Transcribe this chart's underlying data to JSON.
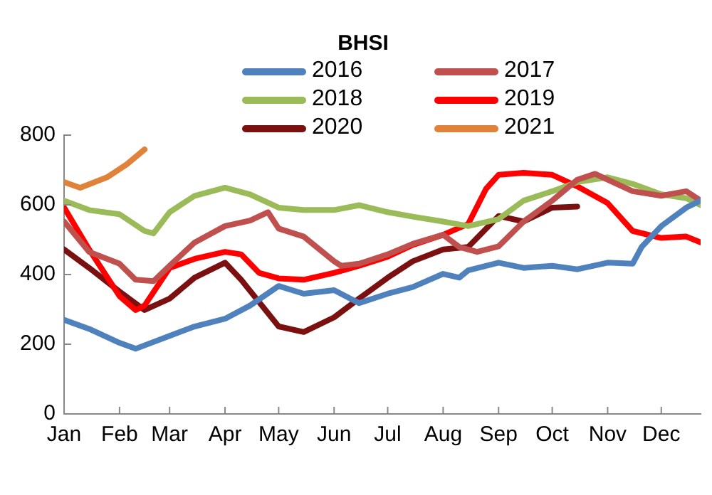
{
  "chart_data": {
    "type": "line",
    "title": "BHSI",
    "legend": "top",
    "grid": false,
    "marker": "none",
    "line_style": "solid",
    "xlim": [
      "--01-01",
      "--12-23"
    ],
    "xticks": [
      {
        "value": "--01-01",
        "label": "Jan"
      },
      {
        "value": "--02-01",
        "label": "Feb"
      },
      {
        "value": "--03-01",
        "label": "Mar"
      },
      {
        "value": "--04-01",
        "label": "Apr"
      },
      {
        "value": "--05-01",
        "label": "May"
      },
      {
        "value": "--06-01",
        "label": "Jun"
      },
      {
        "value": "--07-01",
        "label": "Jul"
      },
      {
        "value": "--08-01",
        "label": "Aug"
      },
      {
        "value": "--09-01",
        "label": "Sep"
      },
      {
        "value": "--10-01",
        "label": "Oct"
      },
      {
        "value": "--11-01",
        "label": "Nov"
      },
      {
        "value": "--12-01",
        "label": "Dec"
      }
    ],
    "ylim": [
      0,
      800
    ],
    "yticks": [
      0,
      200,
      400,
      600,
      800
    ],
    "series": [
      {
        "name": "2016",
        "color": "#4f81bd",
        "x": [
          "--01-01",
          "--01-15",
          "--02-01",
          "--02-10",
          "--03-01",
          "--03-15",
          "--04-01",
          "--04-15",
          "--05-01",
          "--05-15",
          "--06-01",
          "--06-10",
          "--06-15",
          "--07-01",
          "--07-15",
          "--08-01",
          "--08-10",
          "--08-15",
          "--09-01",
          "--09-15",
          "--10-01",
          "--10-15",
          "--11-01",
          "--11-15",
          "--11-20",
          "--12-01",
          "--12-15",
          "--12-23"
        ],
        "values": [
          270,
          244,
          204,
          187,
          224,
          251,
          273,
          311,
          367,
          345,
          355,
          331,
          318,
          345,
          364,
          402,
          391,
          412,
          434,
          419,
          425,
          415,
          434,
          431,
          479,
          539,
          592,
          612
        ]
      },
      {
        "name": "2017",
        "color": "#c0504d",
        "x": [
          "--01-01",
          "--01-15",
          "--02-01",
          "--02-10",
          "--02-20",
          "--03-01",
          "--03-15",
          "--04-01",
          "--04-15",
          "--04-25",
          "--05-01",
          "--05-15",
          "--06-01",
          "--06-05",
          "--06-15",
          "--07-01",
          "--07-15",
          "--08-01",
          "--08-10",
          "--08-20",
          "--09-01",
          "--09-15",
          "--10-01",
          "--10-15",
          "--10-25",
          "--11-01",
          "--11-15",
          "--12-01",
          "--12-15",
          "--12-23"
        ],
        "values": [
          552,
          465,
          431,
          385,
          381,
          425,
          492,
          539,
          555,
          579,
          532,
          509,
          438,
          425,
          431,
          458,
          488,
          514,
          479,
          465,
          481,
          552,
          612,
          672,
          689,
          672,
          639,
          626,
          639,
          612
        ]
      },
      {
        "name": "2018",
        "color": "#9bbb59",
        "x": [
          "--01-01",
          "--01-15",
          "--02-01",
          "--02-15",
          "--02-20",
          "--03-01",
          "--03-15",
          "--04-01",
          "--04-15",
          "--05-01",
          "--05-15",
          "--06-01",
          "--06-15",
          "--07-01",
          "--07-15",
          "--08-01",
          "--08-15",
          "--09-01",
          "--09-15",
          "--10-01",
          "--10-15",
          "--11-01",
          "--11-15",
          "--12-01",
          "--12-15",
          "--12-23"
        ],
        "values": [
          612,
          585,
          573,
          525,
          518,
          579,
          626,
          649,
          630,
          592,
          585,
          585,
          599,
          579,
          566,
          552,
          539,
          559,
          612,
          639,
          665,
          679,
          660,
          630,
          619,
          599
        ]
      },
      {
        "name": "2019",
        "color": "#ff0000",
        "x": [
          "--01-01",
          "--01-15",
          "--02-01",
          "--02-10",
          "--02-15",
          "--03-01",
          "--03-15",
          "--04-01",
          "--04-10",
          "--04-20",
          "--05-01",
          "--05-15",
          "--06-01",
          "--06-15",
          "--07-01",
          "--07-15",
          "--08-01",
          "--08-15",
          "--08-25",
          "--09-01",
          "--09-15",
          "--10-01",
          "--10-15",
          "--11-01",
          "--11-15",
          "--12-01",
          "--12-15",
          "--12-23"
        ],
        "values": [
          592,
          472,
          338,
          298,
          311,
          419,
          445,
          465,
          458,
          405,
          389,
          385,
          405,
          425,
          451,
          485,
          514,
          545,
          646,
          686,
          692,
          686,
          653,
          605,
          525,
          505,
          509,
          492
        ]
      },
      {
        "name": "2020",
        "color": "#7b1010",
        "x": [
          "--01-01",
          "--01-15",
          "--02-01",
          "--02-15",
          "--03-01",
          "--03-15",
          "--04-01",
          "--04-10",
          "--05-01",
          "--05-15",
          "--06-01",
          "--06-15",
          "--07-01",
          "--07-15",
          "--08-01",
          "--08-15",
          "--09-01",
          "--09-15",
          "--10-01",
          "--10-15"
        ],
        "values": [
          472,
          419,
          351,
          298,
          331,
          391,
          434,
          385,
          251,
          235,
          277,
          331,
          391,
          438,
          472,
          479,
          568,
          552,
          592,
          595
        ]
      },
      {
        "name": "2021",
        "color": "#e0823a",
        "x": [
          "--01-01",
          "--01-10",
          "--01-25",
          "--02-05",
          "--02-15"
        ],
        "values": [
          665,
          649,
          679,
          716,
          759
        ]
      }
    ]
  }
}
